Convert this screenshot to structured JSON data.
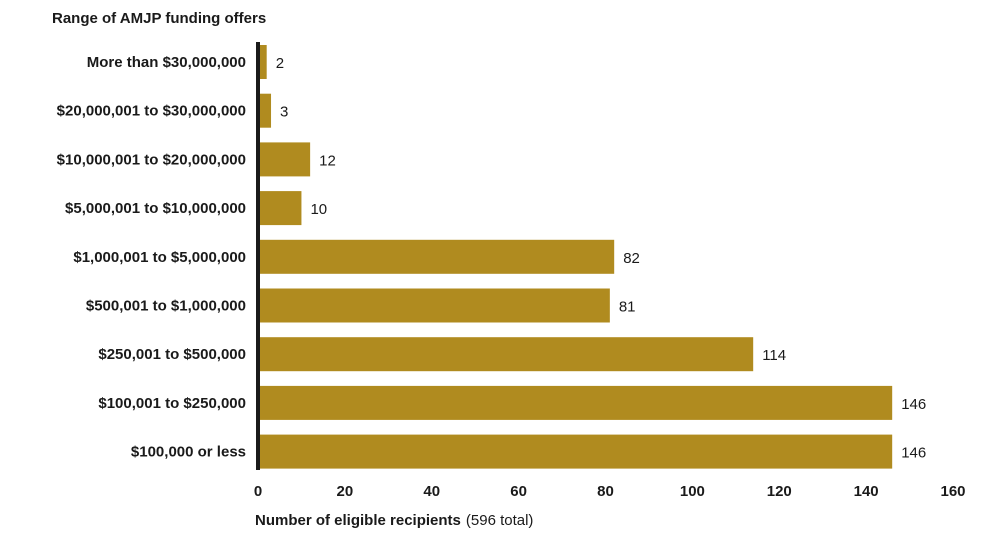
{
  "chart_data": {
    "type": "bar",
    "orientation": "horizontal",
    "title": "Range of AMJP funding offers",
    "xlabel": "Number of eligible recipients",
    "xlabel_note": "(596 total)",
    "categories": [
      "More than $30,000,000",
      "$20,000,001 to $30,000,000",
      "$10,000,001 to $20,000,000",
      "$5,000,001 to $10,000,000",
      "$1,000,001 to $5,000,000",
      "$500,001 to $1,000,000",
      "$250,001 to $500,000",
      "$100,001 to $250,000",
      "$100,000 or less"
    ],
    "values": [
      2,
      3,
      12,
      10,
      82,
      81,
      114,
      146,
      146
    ],
    "xlim": [
      0,
      160
    ],
    "xticks": [
      0,
      20,
      40,
      60,
      80,
      100,
      120,
      140,
      160
    ],
    "grid": false,
    "bar_color": "#b08b1f",
    "axis_color": "#1a1a1a"
  }
}
